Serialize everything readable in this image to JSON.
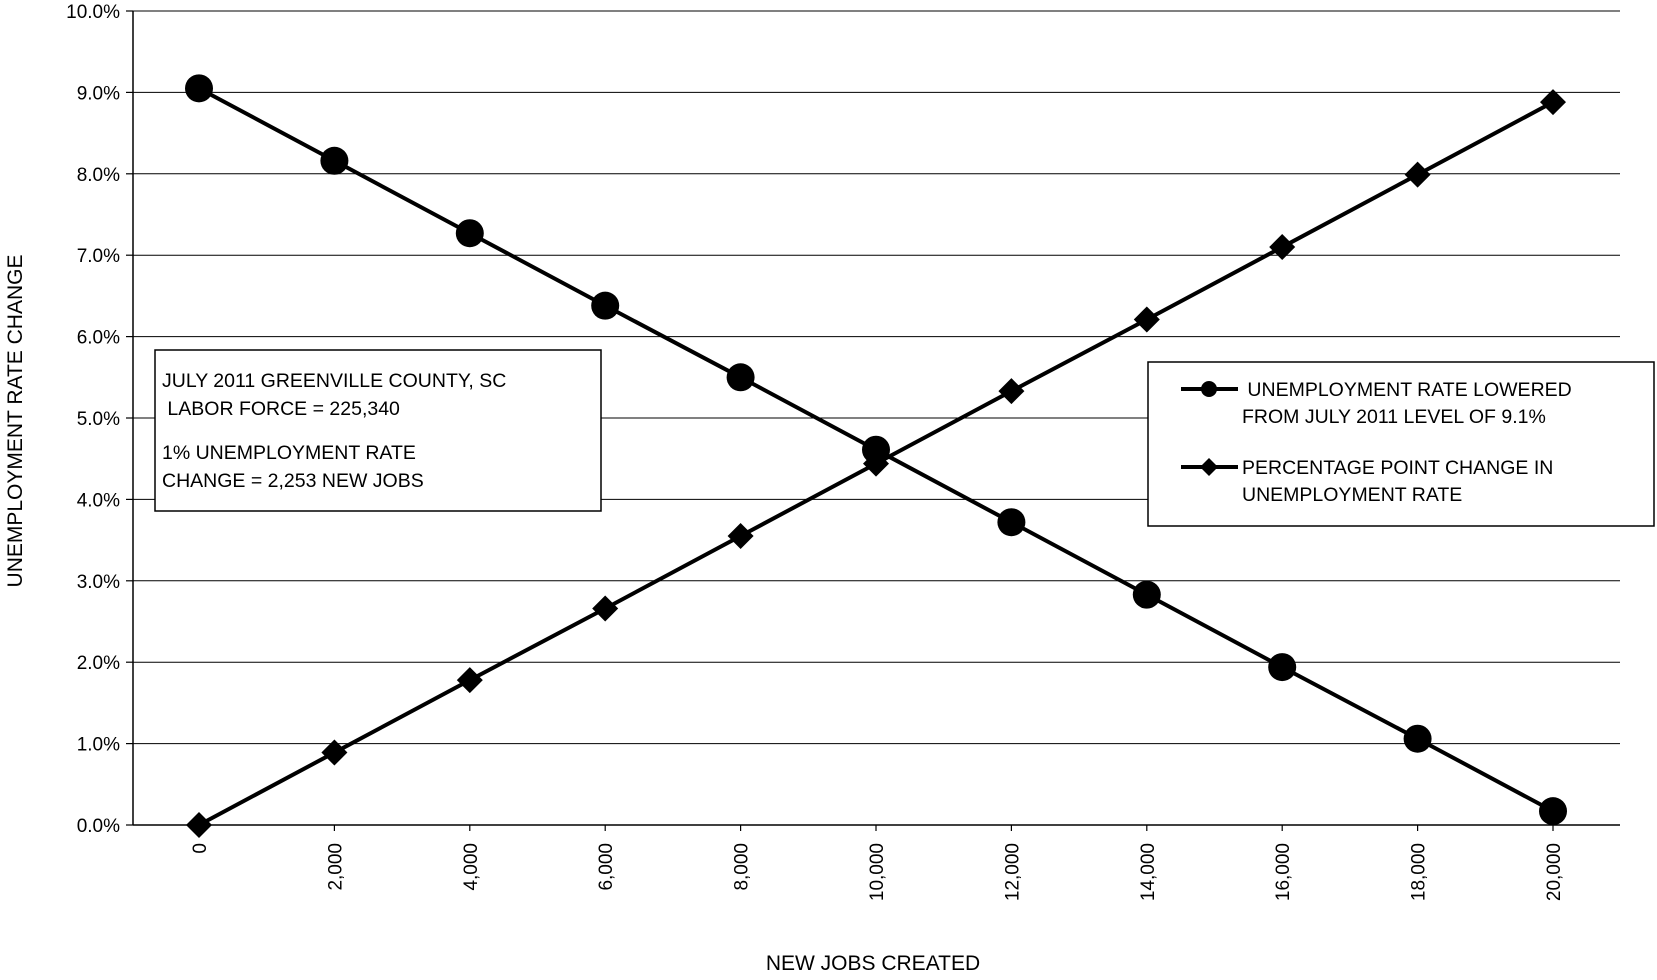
{
  "chart_data": {
    "type": "line",
    "xlabel": "NEW JOBS  CREATED",
    "ylabel": "UNEMPLOYMENT RATE CHANGE",
    "ylim": [
      0,
      10
    ],
    "y_ticks": [
      "0.0%",
      "1.0%",
      "2.0%",
      "3.0%",
      "4.0%",
      "5.0%",
      "6.0%",
      "7.0%",
      "8.0%",
      "9.0%",
      "10.0%"
    ],
    "categories": [
      "0",
      "2,000",
      "4,000",
      "6,000",
      "8,000",
      "10,000",
      "12,000",
      "14,000",
      "16,000",
      "18,000",
      "20,000"
    ],
    "x": [
      0,
      2000,
      4000,
      6000,
      8000,
      10000,
      12000,
      14000,
      16000,
      18000,
      20000
    ],
    "grid": "horizontal",
    "legend_position": "right",
    "series": [
      {
        "name_lines": [
          " UNEMPLOYMENT RATE LOWERED",
          "FROM JULY 2011 LEVEL OF 9.1%"
        ],
        "marker": "circle",
        "color": "#000000",
        "values": [
          9.05,
          8.16,
          7.27,
          6.38,
          5.5,
          4.61,
          3.72,
          2.83,
          1.94,
          1.06,
          0.17
        ]
      },
      {
        "name_lines": [
          "PERCENTAGE POINT CHANGE IN",
          "UNEMPLOYMENT RATE"
        ],
        "marker": "diamond",
        "color": "#000000",
        "values": [
          0.0,
          0.89,
          1.78,
          2.66,
          3.55,
          4.44,
          5.33,
          6.21,
          7.1,
          7.99,
          8.88
        ]
      }
    ],
    "annotation": {
      "lines": [
        "JULY 2011 GREENVILLE COUNTY, SC",
        " LABOR FORCE = 225,340",
        "1% UNEMPLOYMENT RATE",
        "CHANGE = 2,253 NEW JOBS"
      ]
    }
  }
}
